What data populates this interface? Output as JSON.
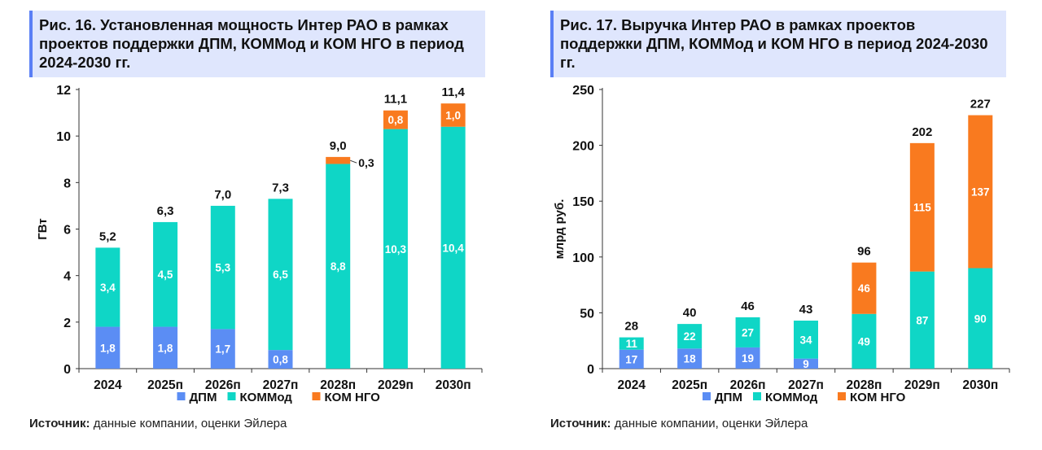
{
  "colors": {
    "dpm": "#5b8df4",
    "kommod": "#0fd6c6",
    "kom_ngo": "#f97a1f",
    "title_bg": "#dfe6fd",
    "title_bar": "#5a7ff5"
  },
  "chart_data": [
    {
      "type": "bar",
      "stacked": true,
      "title": "Рис. 16. Установленная мощность Интер РАО в рамках проектов поддержки ДПМ, КОММод и КОМ НГО в период 2024-2030 гг.",
      "categories": [
        "2024",
        "2025п",
        "2026п",
        "2027п",
        "2028п",
        "2029п",
        "2030п"
      ],
      "series": [
        {
          "name": "ДПМ",
          "values": [
            1.8,
            1.8,
            1.7,
            0.8,
            0,
            0,
            0
          ],
          "labels": [
            "1,8",
            "1,8",
            "1,7",
            "0,8",
            "",
            "",
            ""
          ]
        },
        {
          "name": "КОММод",
          "values": [
            3.4,
            4.5,
            5.3,
            6.5,
            8.8,
            10.3,
            10.4
          ],
          "labels": [
            "3,4",
            "4,5",
            "5,3",
            "6,5",
            "8,8",
            "10,3",
            "10,4"
          ]
        },
        {
          "name": "КОМ НГО",
          "values": [
            0,
            0,
            0,
            0,
            0.3,
            0.8,
            1.0
          ],
          "labels": [
            "",
            "",
            "",
            "",
            "0,3",
            "0,8",
            "1,0"
          ]
        }
      ],
      "totals": [
        "5,2",
        "6,3",
        "7,0",
        "7,3",
        "9,0",
        "11,1",
        "11,4"
      ],
      "xlabel": "",
      "ylabel": "ГВт",
      "ylim": [
        0,
        12
      ],
      "yticks": [
        0,
        2,
        4,
        6,
        8,
        10,
        12
      ],
      "legend": "bottom",
      "source_label": "Источник:",
      "source_text": " данные компании, оценки Эйлера"
    },
    {
      "type": "bar",
      "stacked": true,
      "title": "Рис. 17. Выручка Интер РАО в рамках проектов поддержки ДПМ, КОММод и КОМ НГО в период 2024-2030 гг.",
      "categories": [
        "2024",
        "2025п",
        "2026п",
        "2027п",
        "2028п",
        "2029п",
        "2030п"
      ],
      "series": [
        {
          "name": "ДПМ",
          "values": [
            17,
            18,
            19,
            9,
            0,
            0,
            0
          ],
          "labels": [
            "17",
            "18",
            "19",
            "9",
            "",
            "",
            ""
          ]
        },
        {
          "name": "КОММод",
          "values": [
            11,
            22,
            27,
            34,
            49,
            87,
            90
          ],
          "labels": [
            "11",
            "22",
            "27",
            "34",
            "49",
            "87",
            "90"
          ]
        },
        {
          "name": "КОМ НГО",
          "values": [
            0,
            0,
            0,
            0,
            46,
            115,
            137
          ],
          "labels": [
            "",
            "",
            "",
            "",
            "46",
            "115",
            "137"
          ]
        }
      ],
      "totals": [
        "28",
        "40",
        "46",
        "43",
        "96",
        "202",
        "227"
      ],
      "xlabel": "",
      "ylabel": "млрд руб.",
      "ylim": [
        0,
        250
      ],
      "yticks": [
        0,
        50,
        100,
        150,
        200,
        250
      ],
      "legend": "bottom",
      "source_label": "Источник:",
      "source_text": " данные компании, оценки Эйлера"
    }
  ]
}
